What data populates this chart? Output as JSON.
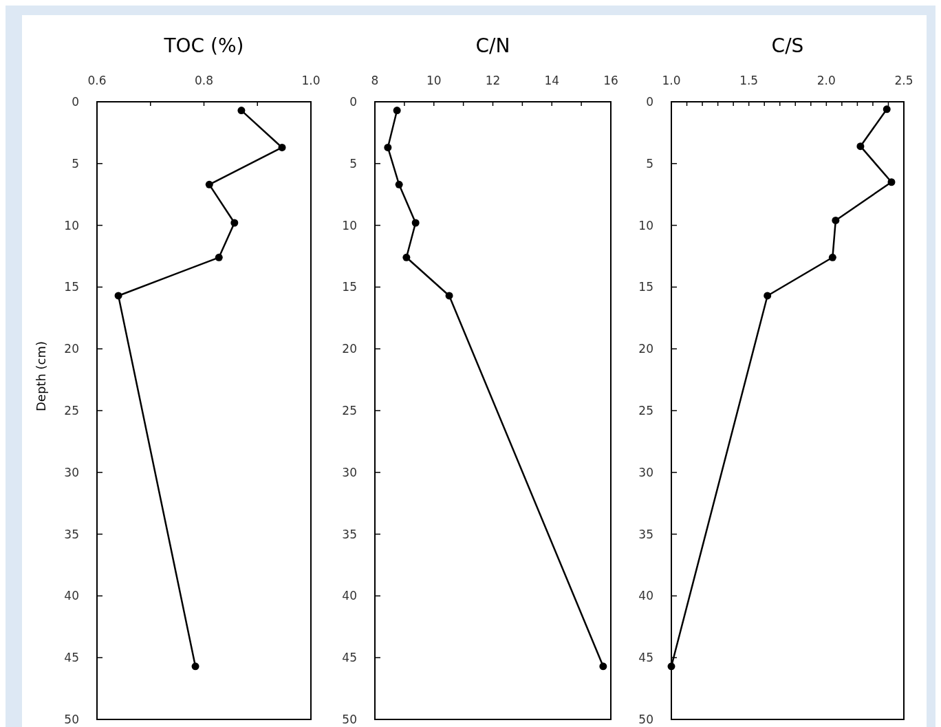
{
  "chart_data": [
    {
      "type": "line",
      "title": "TOC (%)",
      "ylabel": "Depth (cm)",
      "xlim": [
        0.6,
        1.0
      ],
      "xticks": [
        0.6,
        {
          "value": 0.7,
          "label": null
        },
        0.8,
        {
          "value": 0.9,
          "label": null
        },
        {
          "value": 1.0,
          "label": "1.0"
        }
      ],
      "ylim": [
        50,
        0
      ],
      "yticks": [
        0,
        5,
        10,
        15,
        20,
        25,
        30,
        35,
        40,
        45,
        50
      ],
      "grid": false,
      "marker": "circle",
      "line_style": "solid",
      "series": [
        {
          "color": "#000000",
          "x": [
            0.87,
            0.946,
            0.81,
            0.857,
            0.828,
            0.64,
            0.784
          ],
          "values": [
            0.7,
            3.7,
            6.7,
            9.8,
            12.6,
            15.7,
            45.7
          ]
        }
      ]
    },
    {
      "type": "line",
      "title": "C/N",
      "xlim": [
        8,
        16
      ],
      "xticks": [
        8,
        {
          "value": 9,
          "label": null
        },
        10,
        {
          "value": 11,
          "label": null
        },
        12,
        {
          "value": 13,
          "label": null
        },
        14,
        {
          "value": 15,
          "label": null
        },
        16
      ],
      "ylim": [
        50,
        0
      ],
      "yticks": [
        0,
        5,
        10,
        15,
        20,
        25,
        30,
        35,
        40,
        45,
        50
      ],
      "grid": false,
      "marker": "circle",
      "line_style": "solid",
      "series": [
        {
          "color": "#000000",
          "x": [
            8.75,
            8.44,
            8.82,
            9.38,
            9.07,
            10.52,
            15.74
          ],
          "values": [
            0.7,
            3.7,
            6.7,
            9.8,
            12.6,
            15.7,
            45.7
          ]
        }
      ]
    },
    {
      "type": "line",
      "title": "C/S",
      "xlim": [
        1.0,
        2.5
      ],
      "xticks": [
        {
          "value": 1.0,
          "label": "1.0"
        },
        {
          "value": 1.1,
          "label": null
        },
        {
          "value": 1.2,
          "label": null
        },
        {
          "value": 1.3,
          "label": null
        },
        {
          "value": 1.4,
          "label": null
        },
        1.5,
        {
          "value": 1.6,
          "label": null
        },
        {
          "value": 1.7,
          "label": null
        },
        {
          "value": 1.8,
          "label": null
        },
        {
          "value": 1.9,
          "label": null
        },
        {
          "value": 2.0,
          "label": "2.0"
        },
        {
          "value": 2.1,
          "label": null
        },
        {
          "value": 2.2,
          "label": null
        },
        {
          "value": 2.3,
          "label": null
        },
        {
          "value": 2.4,
          "label": null
        },
        2.5
      ],
      "ylim": [
        50,
        0
      ],
      "yticks": [
        0,
        5,
        10,
        15,
        20,
        25,
        30,
        35,
        40,
        45,
        50
      ],
      "grid": false,
      "marker": "circle",
      "line_style": "solid",
      "series": [
        {
          "color": "#000000",
          "x": [
            2.39,
            2.22,
            2.42,
            2.06,
            2.04,
            1.62,
            1.0
          ],
          "values": [
            0.6,
            3.6,
            6.5,
            9.6,
            12.6,
            15.7,
            45.7
          ]
        }
      ]
    }
  ]
}
